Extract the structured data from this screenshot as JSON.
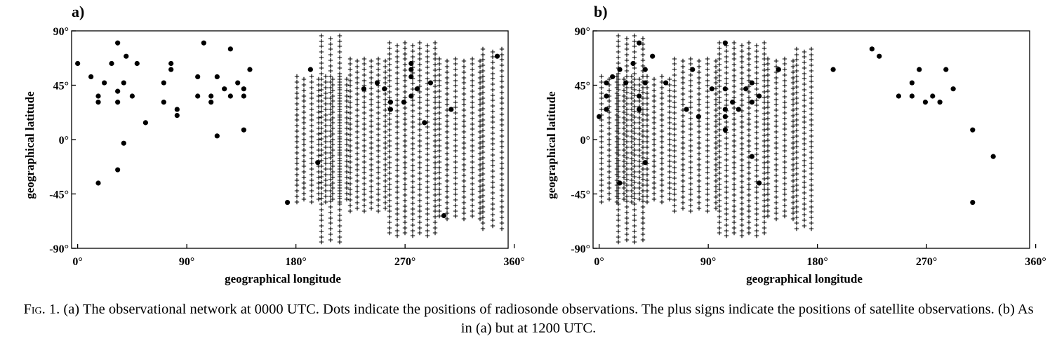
{
  "caption": {
    "fig_label": "Fig. 1.",
    "text": "(a) The observational network at 0000 UTC. Dots indicate the positions of radiosonde observations. The plus signs indicate the positions of satellite observations. (b) As in (a) but at 1200 UTC."
  },
  "chart_data": [
    {
      "type": "scatter",
      "panel_label": "a)",
      "xlabel": "geographical longitude",
      "ylabel": "geographical latitude",
      "xlim": [
        -5,
        355
      ],
      "ylim": [
        -90,
        90
      ],
      "xticks": [
        0,
        90,
        180,
        270,
        360
      ],
      "xtick_labels": [
        "0°",
        "90°",
        "180°",
        "270°",
        "360°"
      ],
      "yticks": [
        90,
        45,
        0,
        -45,
        -90
      ],
      "ytick_labels": [
        "90°",
        "45°",
        "0°",
        "-45°",
        "-90°"
      ],
      "grid": false,
      "legend": "none",
      "series": [
        {
          "marker": "dot",
          "points": [
            [
              0,
              63
            ],
            [
              11,
              52
            ],
            [
              17,
              36
            ],
            [
              17,
              31
            ],
            [
              17,
              -36
            ],
            [
              22,
              47
            ],
            [
              28,
              63
            ],
            [
              33,
              80
            ],
            [
              33,
              40
            ],
            [
              33,
              31
            ],
            [
              33,
              -25
            ],
            [
              38,
              47
            ],
            [
              38,
              -3
            ],
            [
              40,
              69
            ],
            [
              45,
              36
            ],
            [
              49,
              63
            ],
            [
              56,
              14
            ],
            [
              71,
              47
            ],
            [
              71,
              31
            ],
            [
              77,
              63
            ],
            [
              77,
              58
            ],
            [
              82,
              25
            ],
            [
              82,
              20
            ],
            [
              99,
              52
            ],
            [
              99,
              36
            ],
            [
              104,
              80
            ],
            [
              110,
              36
            ],
            [
              110,
              31
            ],
            [
              115,
              52
            ],
            [
              115,
              3
            ],
            [
              121,
              42
            ],
            [
              126,
              75
            ],
            [
              126,
              36
            ],
            [
              132,
              47
            ],
            [
              137,
              42
            ],
            [
              137,
              36
            ],
            [
              137,
              8
            ],
            [
              142,
              58
            ],
            [
              173,
              -52
            ],
            [
              192,
              58
            ],
            [
              198,
              -19
            ],
            [
              236,
              42
            ],
            [
              247,
              47
            ],
            [
              253,
              42
            ],
            [
              258,
              31
            ],
            [
              258,
              25
            ],
            [
              269,
              31
            ],
            [
              275,
              63
            ],
            [
              275,
              58
            ],
            [
              275,
              52
            ],
            [
              275,
              36
            ],
            [
              280,
              42
            ],
            [
              286,
              14
            ],
            [
              291,
              47
            ],
            [
              302,
              -63
            ],
            [
              308,
              25
            ],
            [
              346,
              69
            ]
          ]
        },
        {
          "marker": "plus",
          "bands": [
            {
              "x0": 181,
              "x1": 222,
              "cols": 8,
              "lat_top": 52,
              "lat_bottom": -52
            },
            {
              "x0": 201,
              "x1": 216,
              "cols": 3,
              "lat_top": 86,
              "lat_bottom": -86
            },
            {
              "x0": 225,
              "x1": 254,
              "cols": 6,
              "lat_top": 67,
              "lat_bottom": -60
            },
            {
              "x0": 257,
              "x1": 295,
              "cols": 7,
              "lat_top": 80,
              "lat_bottom": -80
            },
            {
              "x0": 298,
              "x1": 332,
              "cols": 6,
              "lat_top": 67,
              "lat_bottom": -67
            },
            {
              "x0": 334,
              "x1": 350,
              "cols": 3,
              "lat_top": 75,
              "lat_bottom": -75
            }
          ],
          "lat_step": 4.5
        }
      ]
    },
    {
      "type": "scatter",
      "panel_label": "b)",
      "xlabel": "geographical longitude",
      "ylabel": "geographical latitude",
      "xlim": [
        -5,
        355
      ],
      "ylim": [
        -90,
        90
      ],
      "xticks": [
        0,
        90,
        180,
        270,
        360
      ],
      "xtick_labels": [
        "0°",
        "90°",
        "180°",
        "270°",
        "360°"
      ],
      "yticks": [
        90,
        45,
        0,
        -45,
        -90
      ],
      "ytick_labels": [
        "90°",
        "45°",
        "0°",
        "-45°",
        "-90°"
      ],
      "grid": false,
      "legend": "none",
      "series": [
        {
          "marker": "dot",
          "points": [
            [
              0,
              19
            ],
            [
              6,
              47
            ],
            [
              6,
              36
            ],
            [
              6,
              25
            ],
            [
              11,
              52
            ],
            [
              17,
              58
            ],
            [
              17,
              -36
            ],
            [
              22,
              47
            ],
            [
              28,
              63
            ],
            [
              33,
              80
            ],
            [
              33,
              36
            ],
            [
              33,
              25
            ],
            [
              38,
              58
            ],
            [
              38,
              47
            ],
            [
              38,
              -19
            ],
            [
              44,
              69
            ],
            [
              55,
              47
            ],
            [
              72,
              25
            ],
            [
              77,
              58
            ],
            [
              82,
              19
            ],
            [
              93,
              42
            ],
            [
              104,
              80
            ],
            [
              104,
              42
            ],
            [
              104,
              25
            ],
            [
              104,
              19
            ],
            [
              104,
              8
            ],
            [
              110,
              31
            ],
            [
              115,
              25
            ],
            [
              121,
              42
            ],
            [
              126,
              31
            ],
            [
              126,
              47
            ],
            [
              126,
              -14
            ],
            [
              132,
              36
            ],
            [
              132,
              -36
            ],
            [
              148,
              58
            ],
            [
              193,
              58
            ],
            [
              225,
              75
            ],
            [
              231,
              69
            ],
            [
              247,
              36
            ],
            [
              258,
              36
            ],
            [
              258,
              47
            ],
            [
              264,
              58
            ],
            [
              269,
              31
            ],
            [
              275,
              36
            ],
            [
              281,
              31
            ],
            [
              286,
              58
            ],
            [
              292,
              42
            ],
            [
              308,
              8
            ],
            [
              308,
              -52
            ],
            [
              325,
              -14
            ]
          ]
        },
        {
          "marker": "plus",
          "bands": [
            {
              "x0": 2,
              "x1": 58,
              "cols": 10,
              "lat_top": 52,
              "lat_bottom": -52
            },
            {
              "x0": 16,
              "x1": 36,
              "cols": 4,
              "lat_top": 86,
              "lat_bottom": -86
            },
            {
              "x0": 62,
              "x1": 96,
              "cols": 6,
              "lat_top": 67,
              "lat_bottom": -60
            },
            {
              "x0": 99,
              "x1": 136,
              "cols": 7,
              "lat_top": 80,
              "lat_bottom": -80
            },
            {
              "x0": 139,
              "x1": 160,
              "cols": 4,
              "lat_top": 67,
              "lat_bottom": -67
            },
            {
              "x0": 163,
              "x1": 175,
              "cols": 3,
              "lat_top": 75,
              "lat_bottom": -75
            }
          ],
          "lat_step": 4.5
        }
      ]
    }
  ]
}
